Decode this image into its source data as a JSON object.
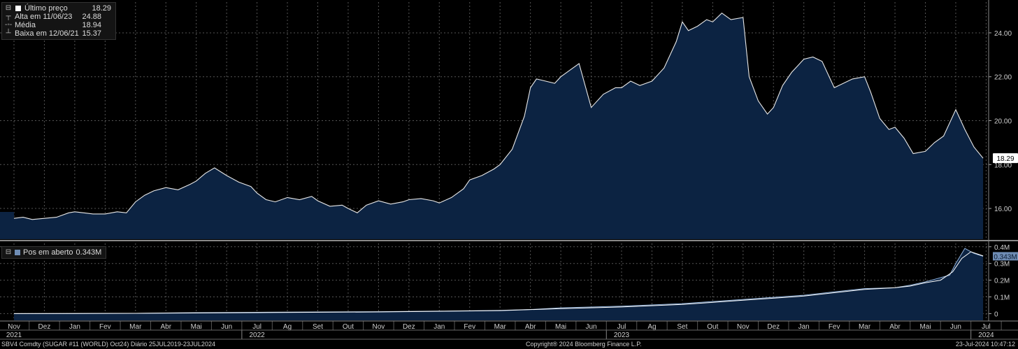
{
  "legend_main": {
    "rows": [
      {
        "label": "Último preço",
        "value": "18.29"
      },
      {
        "label": "Alta em 11/06/23",
        "value": "24.88"
      },
      {
        "label": "Média",
        "value": "18.94"
      },
      {
        "label": "Baixa em 12/06/21",
        "value": "15.37"
      }
    ]
  },
  "legend_sub": {
    "label": "Pos em aberto",
    "value": "0.343M"
  },
  "last_price_tag": "18.29",
  "last_oi_tag": "0.343M",
  "footer": {
    "left": "SBV4 Comdty (SUGAR #11 (WORLD) Oct24)  Diário 25JUL2019-23JUL2024",
    "center": "Copyright® 2024 Bloomberg Finance L.P.",
    "right": "23-Jul-2024 10:47:12"
  },
  "colors": {
    "fill": "#0c2342",
    "line": "#e8e8e8",
    "grid": "#555555",
    "oi_fill": "#0c2342"
  },
  "chart_data": [
    {
      "type": "area",
      "ylim": [
        14.6,
        25.4
      ],
      "yticks": [
        "16.00",
        "18.00",
        "20.00",
        "22.00",
        "24.00"
      ],
      "ytick_values": [
        16,
        18,
        20,
        22,
        24
      ],
      "x_months": [
        "Nov",
        "Dez",
        "Jan",
        "Fev",
        "Mar",
        "Abr",
        "Mai",
        "Jun",
        "Jul",
        "Ag",
        "Set",
        "Out",
        "Nov",
        "Dez",
        "Jan",
        "Fev",
        "Mar",
        "Abr",
        "Mai",
        "Jun",
        "Jul",
        "Ag",
        "Set",
        "Out",
        "Nov",
        "Dez",
        "Jan",
        "Fev",
        "Mar",
        "Abr",
        "Mai",
        "Jun",
        "Jul"
      ],
      "x_years": [
        "2021",
        "2022",
        "2023",
        "2024"
      ],
      "x_year_month_index": [
        0,
        8,
        20,
        32
      ],
      "series": [
        {
          "x": [
            0,
            0.3,
            0.6,
            1,
            1.4,
            1.8,
            2,
            2.3,
            2.6,
            3,
            3.4,
            3.7,
            4,
            4.3,
            4.6,
            5,
            5.4,
            5.8,
            6,
            6.3,
            6.6,
            7,
            7.4,
            7.8,
            8,
            8.3,
            8.6,
            9,
            9.4,
            9.8,
            10,
            10.4,
            10.8,
            11,
            11.3,
            11.6,
            12,
            12.4,
            12.8,
            13,
            13.4,
            13.8,
            14,
            14.4,
            14.8,
            15,
            15.4,
            15.8,
            16,
            16.4,
            16.8,
            17,
            17.2,
            17.5,
            17.8,
            18,
            18.3,
            18.6,
            19,
            19.4,
            19.8,
            20,
            20.3,
            20.6,
            21,
            21.4,
            21.8,
            22,
            22.2,
            22.5,
            22.8,
            23,
            23.3,
            23.6,
            24,
            24.2,
            24.5,
            24.8,
            25,
            25.3,
            25.6,
            26,
            26.3,
            26.6,
            27,
            27.3,
            27.6,
            28,
            28.2,
            28.5,
            28.8,
            29,
            29.3,
            29.6,
            30,
            30.3,
            30.6,
            31,
            31.3,
            31.6,
            31.9
          ],
          "values": [
            15.55,
            15.6,
            15.5,
            15.55,
            15.6,
            15.8,
            15.85,
            15.8,
            15.75,
            15.75,
            15.85,
            15.8,
            16.3,
            16.6,
            16.8,
            16.95,
            16.85,
            17.1,
            17.25,
            17.6,
            17.85,
            17.5,
            17.2,
            17.0,
            16.7,
            16.4,
            16.3,
            16.5,
            16.4,
            16.55,
            16.35,
            16.1,
            16.15,
            16.0,
            15.8,
            16.15,
            16.35,
            16.2,
            16.3,
            16.4,
            16.45,
            16.35,
            16.25,
            16.5,
            16.9,
            17.3,
            17.5,
            17.8,
            18.0,
            18.7,
            20.2,
            21.5,
            21.9,
            21.8,
            21.7,
            22.0,
            22.3,
            22.6,
            20.6,
            21.2,
            21.5,
            21.5,
            21.8,
            21.6,
            21.8,
            22.4,
            23.6,
            24.5,
            24.1,
            24.3,
            24.6,
            24.5,
            24.9,
            24.6,
            24.7,
            22.0,
            20.9,
            20.3,
            20.6,
            21.6,
            22.2,
            22.8,
            22.9,
            22.7,
            21.5,
            21.7,
            21.9,
            22.0,
            21.3,
            20.1,
            19.6,
            19.7,
            19.2,
            18.5,
            18.6,
            19.0,
            19.3,
            20.5,
            19.6,
            18.8,
            18.29
          ]
        }
      ]
    },
    {
      "type": "area",
      "ylim": [
        -0.04,
        0.42
      ],
      "yticks": [
        "0",
        "0.1M",
        "0.2M",
        "0.3M",
        "0.4M"
      ],
      "ytick_values": [
        0,
        0.1,
        0.2,
        0.3,
        0.4
      ],
      "series": [
        {
          "name": "Pos em aberto",
          "x": [
            0,
            2,
            4,
            6,
            8,
            10,
            12,
            14,
            16,
            17,
            18,
            20,
            22,
            24,
            26,
            27,
            28,
            29,
            29.5,
            30,
            30.4,
            30.8,
            31,
            31.3,
            31.6,
            31.9
          ],
          "values": [
            0.0,
            0.0,
            0.002,
            0.006,
            0.008,
            0.01,
            0.012,
            0.015,
            0.02,
            0.025,
            0.035,
            0.045,
            0.06,
            0.085,
            0.11,
            0.13,
            0.15,
            0.155,
            0.17,
            0.19,
            0.21,
            0.23,
            0.3,
            0.39,
            0.36,
            0.343
          ]
        },
        {
          "x": [
            0,
            4,
            8,
            12,
            16,
            18,
            20,
            22,
            24,
            26,
            27,
            28,
            29,
            29.5,
            30,
            30.5,
            30.9,
            31.2,
            31.5,
            31.9
          ],
          "values": [
            0.0,
            0.002,
            0.006,
            0.01,
            0.018,
            0.03,
            0.04,
            0.055,
            0.08,
            0.105,
            0.125,
            0.145,
            0.155,
            0.165,
            0.185,
            0.2,
            0.25,
            0.33,
            0.37,
            0.345
          ]
        }
      ]
    }
  ]
}
